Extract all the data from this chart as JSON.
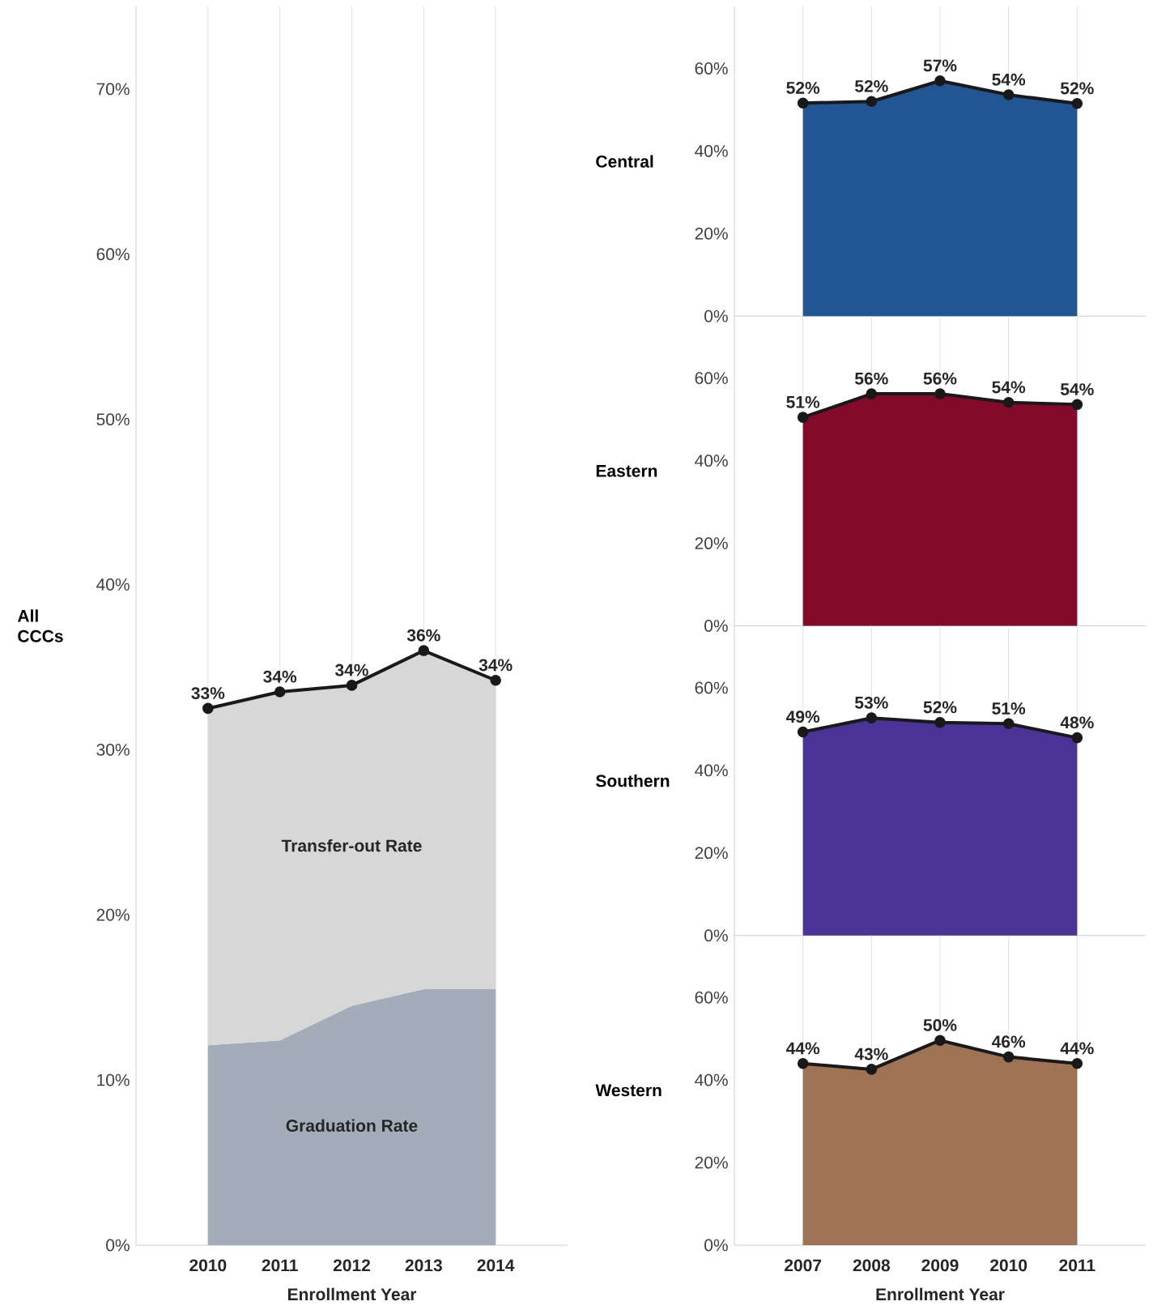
{
  "chart_data": [
    {
      "type": "area",
      "ylabel": "All CCCs",
      "xlabel": "Enrollment Year",
      "x": [
        2010,
        2011,
        2012,
        2013,
        2014
      ],
      "stacked": true,
      "series": [
        {
          "name": "Graduation Rate",
          "color": "#a3adb9",
          "values": [
            12.1,
            12.4,
            14.5,
            15.5,
            15.5
          ]
        },
        {
          "name": "Transfer-out Rate",
          "color": "#d7d7d7",
          "values": [
            20.4,
            21.1,
            19.4,
            20.5,
            18.7
          ],
          "marker": "circle"
        }
      ],
      "totals": [
        "33%",
        "34%",
        "34%",
        "36%",
        "34%"
      ],
      "xlim": [
        2009,
        2015
      ],
      "ylim": [
        0,
        75
      ],
      "xticks": [
        2010,
        2011,
        2012,
        2013,
        2014
      ],
      "yticks": [
        {
          "value": 0,
          "label": "0%"
        },
        {
          "value": 10,
          "label": "10%"
        },
        {
          "value": 20,
          "label": "20%"
        },
        {
          "value": 30,
          "label": "30%"
        },
        {
          "value": 40,
          "label": "40%"
        },
        {
          "value": 50,
          "label": "50%"
        },
        {
          "value": 60,
          "label": "60%"
        },
        {
          "value": 70,
          "label": "70%"
        }
      ],
      "grid": "x"
    },
    {
      "type": "area",
      "ylabel": "Central",
      "x": [
        2007,
        2008,
        2009,
        2010,
        2011
      ],
      "series": [
        {
          "color": "#215594",
          "values": [
            51.6,
            52.0,
            57.0,
            53.6,
            51.5
          ],
          "value_labels": [
            "52%",
            "52%",
            "57%",
            "54%",
            "52%"
          ]
        }
      ],
      "xlim": [
        2006,
        2012
      ],
      "ylim": [
        0,
        75
      ],
      "xticks": [
        2007,
        2008,
        2009,
        2010,
        2011
      ],
      "yticks": [
        {
          "value": 0,
          "label": "0%"
        },
        {
          "value": 20,
          "label": "20%"
        },
        {
          "value": 40,
          "label": "40%"
        },
        {
          "value": 60,
          "label": "60%"
        }
      ],
      "grid": "x",
      "marker": "circle",
      "tick_labels": "y"
    },
    {
      "type": "area",
      "ylabel": "Eastern",
      "x": [
        2007,
        2008,
        2009,
        2010,
        2011
      ],
      "series": [
        {
          "color": "#840a2a",
          "values": [
            50.5,
            56.2,
            56.2,
            54.1,
            53.6
          ],
          "value_labels": [
            "51%",
            "56%",
            "56%",
            "54%",
            "54%"
          ]
        }
      ],
      "xlim": [
        2006,
        2012
      ],
      "ylim": [
        0,
        75
      ],
      "xticks": [
        2007,
        2008,
        2009,
        2010,
        2011
      ],
      "yticks": [
        {
          "value": 0,
          "label": "0%"
        },
        {
          "value": 20,
          "label": "20%"
        },
        {
          "value": 40,
          "label": "40%"
        },
        {
          "value": 60,
          "label": "60%"
        }
      ],
      "grid": "x",
      "marker": "circle",
      "tick_labels": "y"
    },
    {
      "type": "area",
      "ylabel": "Southern",
      "x": [
        2007,
        2008,
        2009,
        2010,
        2011
      ],
      "series": [
        {
          "color": "#4a3296",
          "values": [
            49.3,
            52.7,
            51.6,
            51.3,
            47.9
          ],
          "value_labels": [
            "49%",
            "53%",
            "52%",
            "51%",
            "48%"
          ]
        }
      ],
      "xlim": [
        2006,
        2012
      ],
      "ylim": [
        0,
        75
      ],
      "xticks": [
        2007,
        2008,
        2009,
        2010,
        2011
      ],
      "yticks": [
        {
          "value": 0,
          "label": "0%"
        },
        {
          "value": 20,
          "label": "20%"
        },
        {
          "value": 40,
          "label": "40%"
        },
        {
          "value": 60,
          "label": "60%"
        }
      ],
      "grid": "x",
      "marker": "circle",
      "tick_labels": "y"
    },
    {
      "type": "area",
      "ylabel": "Western",
      "xlabel": "Enrollment Year",
      "x": [
        2007,
        2008,
        2009,
        2010,
        2011
      ],
      "series": [
        {
          "color": "#9e7254",
          "values": [
            44.0,
            42.6,
            49.6,
            45.6,
            44.0
          ],
          "value_labels": [
            "44%",
            "43%",
            "50%",
            "46%",
            "44%"
          ]
        }
      ],
      "xlim": [
        2006,
        2012
      ],
      "ylim": [
        0,
        75
      ],
      "xticks": [
        2007,
        2008,
        2009,
        2010,
        2011
      ],
      "yticks": [
        {
          "value": 0,
          "label": "0%"
        },
        {
          "value": 20,
          "label": "20%"
        },
        {
          "value": 40,
          "label": "40%"
        },
        {
          "value": 60,
          "label": "60%"
        }
      ],
      "grid": "x",
      "marker": "circle"
    }
  ]
}
